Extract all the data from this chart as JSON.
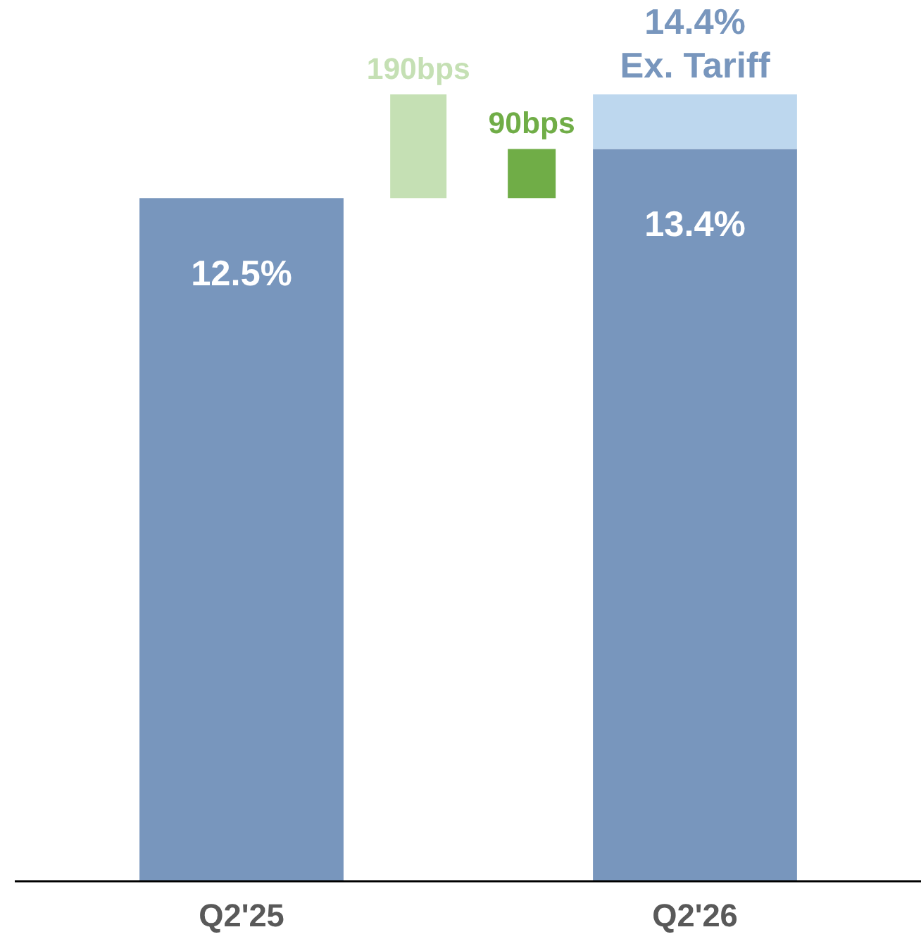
{
  "chart_data": {
    "type": "bar",
    "stacked": true,
    "categories": [
      "Q2'25",
      "Q2'26"
    ],
    "series": [
      {
        "color": "#7896bd",
        "values": [
          12.5,
          13.4
        ],
        "value_labels": [
          "12.5%",
          "13.4%"
        ]
      },
      {
        "color": "#bdd7ee",
        "values": [
          null,
          1.0
        ]
      }
    ],
    "totals": [
      null,
      "14.4%\nEx. Tariff"
    ],
    "tick_labels": "x",
    "grid": false,
    "annotations": [
      "190bps",
      "90bps"
    ]
  }
}
